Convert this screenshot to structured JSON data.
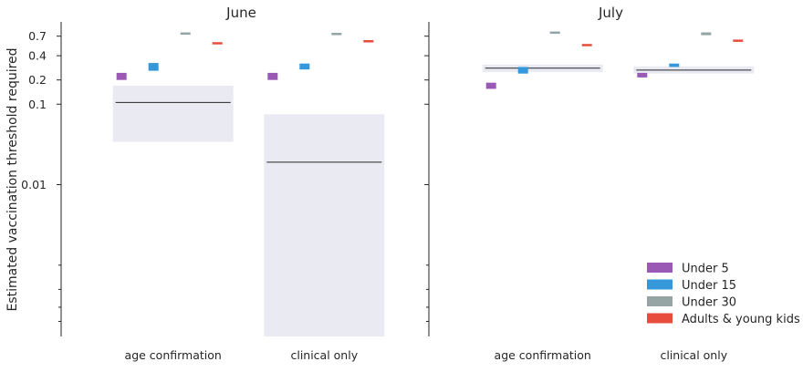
{
  "figure": {
    "ylabel": "Estimated vaccination threshold required",
    "yscale": "log",
    "ylim": [
      0.00013,
      1.0
    ],
    "y_ticks": [
      {
        "value": 0.7,
        "label": "0.7"
      },
      {
        "value": 0.4,
        "label": "0.4"
      },
      {
        "value": 0.2,
        "label": "0.2"
      },
      {
        "value": 0.1,
        "label": "0.1"
      },
      {
        "value": 0.01,
        "label": "0.01"
      }
    ],
    "y_minor_ticks": [
      0.001,
      0.0005,
      0.0003,
      0.0002
    ],
    "colors": {
      "band": "#eaebf2",
      "axis": "#262626",
      "median": "#262626"
    }
  },
  "legend": {
    "placement": "lower-right",
    "entries": [
      {
        "label": "Under 5",
        "color": "#9b59b6"
      },
      {
        "label": "Under 15",
        "color": "#3498db"
      },
      {
        "label": "Under 30",
        "color": "#95a5a6"
      },
      {
        "label": "Adults & young kids",
        "color": "#e74c3c"
      }
    ]
  },
  "chart_data": [
    {
      "type": "range-bar",
      "title": "June",
      "categories": [
        "age confirmation",
        "clinical only"
      ],
      "overall": [
        {
          "category": "age confirmation",
          "median": 0.105,
          "low": 0.034,
          "high": 0.17
        },
        {
          "category": "clinical only",
          "median": 0.019,
          "low": 0.00013,
          "high": 0.075
        }
      ],
      "series": [
        {
          "name": "Under 5",
          "values": [
            {
              "low": 0.2,
              "high": 0.245
            },
            {
              "low": 0.2,
              "high": 0.245
            }
          ]
        },
        {
          "name": "Under 15",
          "values": [
            {
              "low": 0.26,
              "high": 0.325
            },
            {
              "low": 0.27,
              "high": 0.32
            }
          ]
        },
        {
          "name": "Under 30",
          "values": [
            {
              "low": 0.73,
              "high": 0.78
            },
            {
              "low": 0.74,
              "high": 0.77
            }
          ]
        },
        {
          "name": "Adults & young kids",
          "values": [
            {
              "low": 0.56,
              "high": 0.59
            },
            {
              "low": 0.59,
              "high": 0.625
            }
          ]
        }
      ]
    },
    {
      "type": "range-bar",
      "title": "July",
      "categories": [
        "age confirmation",
        "clinical only"
      ],
      "overall": [
        {
          "category": "age confirmation",
          "median": 0.28,
          "low": 0.25,
          "high": 0.31
        },
        {
          "category": "clinical only",
          "median": 0.265,
          "low": 0.24,
          "high": 0.295
        }
      ],
      "series": [
        {
          "name": "Under 5",
          "values": [
            {
              "low": 0.155,
              "high": 0.185
            },
            {
              "low": 0.215,
              "high": 0.245
            }
          ]
        },
        {
          "name": "Under 15",
          "values": [
            {
              "low": 0.24,
              "high": 0.29
            },
            {
              "low": 0.29,
              "high": 0.32
            }
          ]
        },
        {
          "name": "Under 30",
          "values": [
            {
              "low": 0.77,
              "high": 0.8
            },
            {
              "low": 0.72,
              "high": 0.78
            }
          ]
        },
        {
          "name": "Adults & young kids",
          "values": [
            {
              "low": 0.53,
              "high": 0.56
            },
            {
              "low": 0.6,
              "high": 0.635
            }
          ]
        }
      ]
    }
  ]
}
